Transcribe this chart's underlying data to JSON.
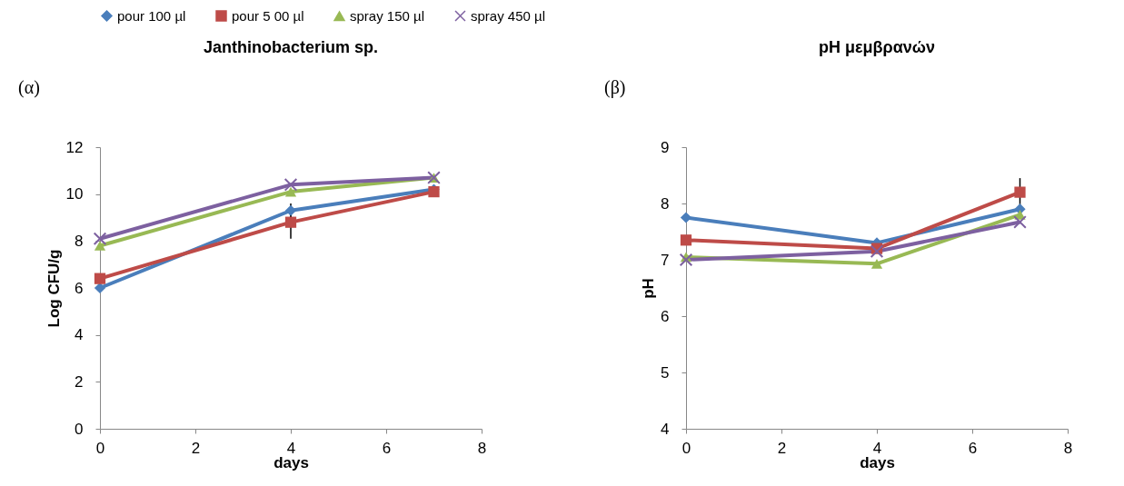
{
  "chart_data": [
    {
      "type": "line",
      "title": "Janthinobacterium sp.",
      "xlabel": "days",
      "ylabel": "Log CFU/g",
      "annotations": [
        "(α)"
      ],
      "x": [
        0,
        4,
        7
      ],
      "xlim": [
        0,
        8
      ],
      "xticks": [
        0,
        2,
        4,
        6,
        8
      ],
      "ylim": [
        0,
        12
      ],
      "yticks": [
        0,
        2,
        4,
        6,
        8,
        10,
        12
      ],
      "grid": false,
      "legend": "top",
      "line_style": "solid",
      "series": [
        {
          "name": "pour 100 µl",
          "color": "#4a7ebb",
          "marker": "diamond",
          "values": [
            6.0,
            9.3,
            10.2
          ],
          "errors": [
            null,
            0.3,
            null
          ]
        },
        {
          "name": "pour 5 00 µl",
          "color": "#be4b48",
          "marker": "square",
          "values": [
            6.4,
            8.8,
            10.1
          ],
          "errors": [
            null,
            0.7,
            null
          ]
        },
        {
          "name": "spray 150 µl",
          "color": "#98b954",
          "marker": "triangle",
          "values": [
            7.8,
            10.1,
            10.7
          ]
        },
        {
          "name": "spray 450 µl",
          "color": "#7d60a0",
          "marker": "cross",
          "values": [
            8.1,
            10.4,
            10.7
          ]
        }
      ]
    },
    {
      "type": "line",
      "title": "pH μεμβρανών",
      "xlabel": "days",
      "ylabel": "pH",
      "annotations": [
        "(β)"
      ],
      "x": [
        0,
        4,
        7
      ],
      "xlim": [
        0,
        8
      ],
      "xticks": [
        0,
        2,
        4,
        6,
        8
      ],
      "ylim": [
        4,
        9
      ],
      "yticks": [
        4,
        5,
        6,
        7,
        8,
        9
      ],
      "grid": false,
      "line_style": "solid",
      "series": [
        {
          "name": "pour 100 µl",
          "color": "#4a7ebb",
          "marker": "diamond",
          "values": [
            7.75,
            7.3,
            7.9
          ]
        },
        {
          "name": "pour 5 00 µl",
          "color": "#be4b48",
          "marker": "square",
          "values": [
            7.35,
            7.2,
            8.2
          ],
          "errors": [
            null,
            null,
            0.25
          ]
        },
        {
          "name": "spray 150 µl",
          "color": "#98b954",
          "marker": "triangle",
          "values": [
            7.05,
            6.93,
            7.8
          ]
        },
        {
          "name": "spray 450 µl",
          "color": "#7d60a0",
          "marker": "cross",
          "values": [
            7.0,
            7.15,
            7.67
          ]
        }
      ]
    }
  ]
}
